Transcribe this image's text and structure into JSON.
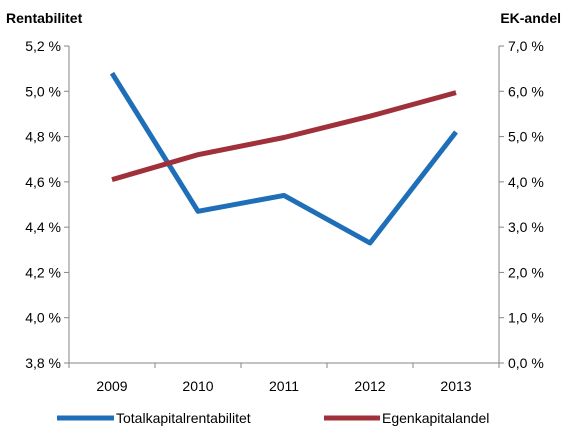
{
  "chart_data": {
    "type": "line",
    "categories": [
      "2009",
      "2010",
      "2011",
      "2012",
      "2013"
    ],
    "left_axis": {
      "title": "Rentabilitet",
      "range": [
        3.8,
        5.2
      ],
      "ticks": [
        "3,8 %",
        "4,0 %",
        "4,2 %",
        "4,4 %",
        "4,6 %",
        "4,8 %",
        "5,0 %",
        "5,2 %"
      ]
    },
    "right_axis": {
      "title": "EK-andel",
      "range": [
        0,
        7
      ],
      "ticks": [
        "0,0 %",
        "1,0 %",
        "2,0 %",
        "3,0 %",
        "4,0 %",
        "5,0 %",
        "6,0 %",
        "7,0 %"
      ]
    },
    "series": [
      {
        "name": "Totalkapitalrentabilitet",
        "axis": "left",
        "color": "#1F6FB8",
        "values": [
          5.08,
          4.47,
          4.54,
          4.33,
          4.82
        ]
      },
      {
        "name": "Egenkapitalandel",
        "axis": "right",
        "color": "#A0303A",
        "values": [
          4.05,
          4.6,
          4.98,
          5.45,
          5.97
        ]
      }
    ],
    "grid": false,
    "legend": "bottom"
  }
}
